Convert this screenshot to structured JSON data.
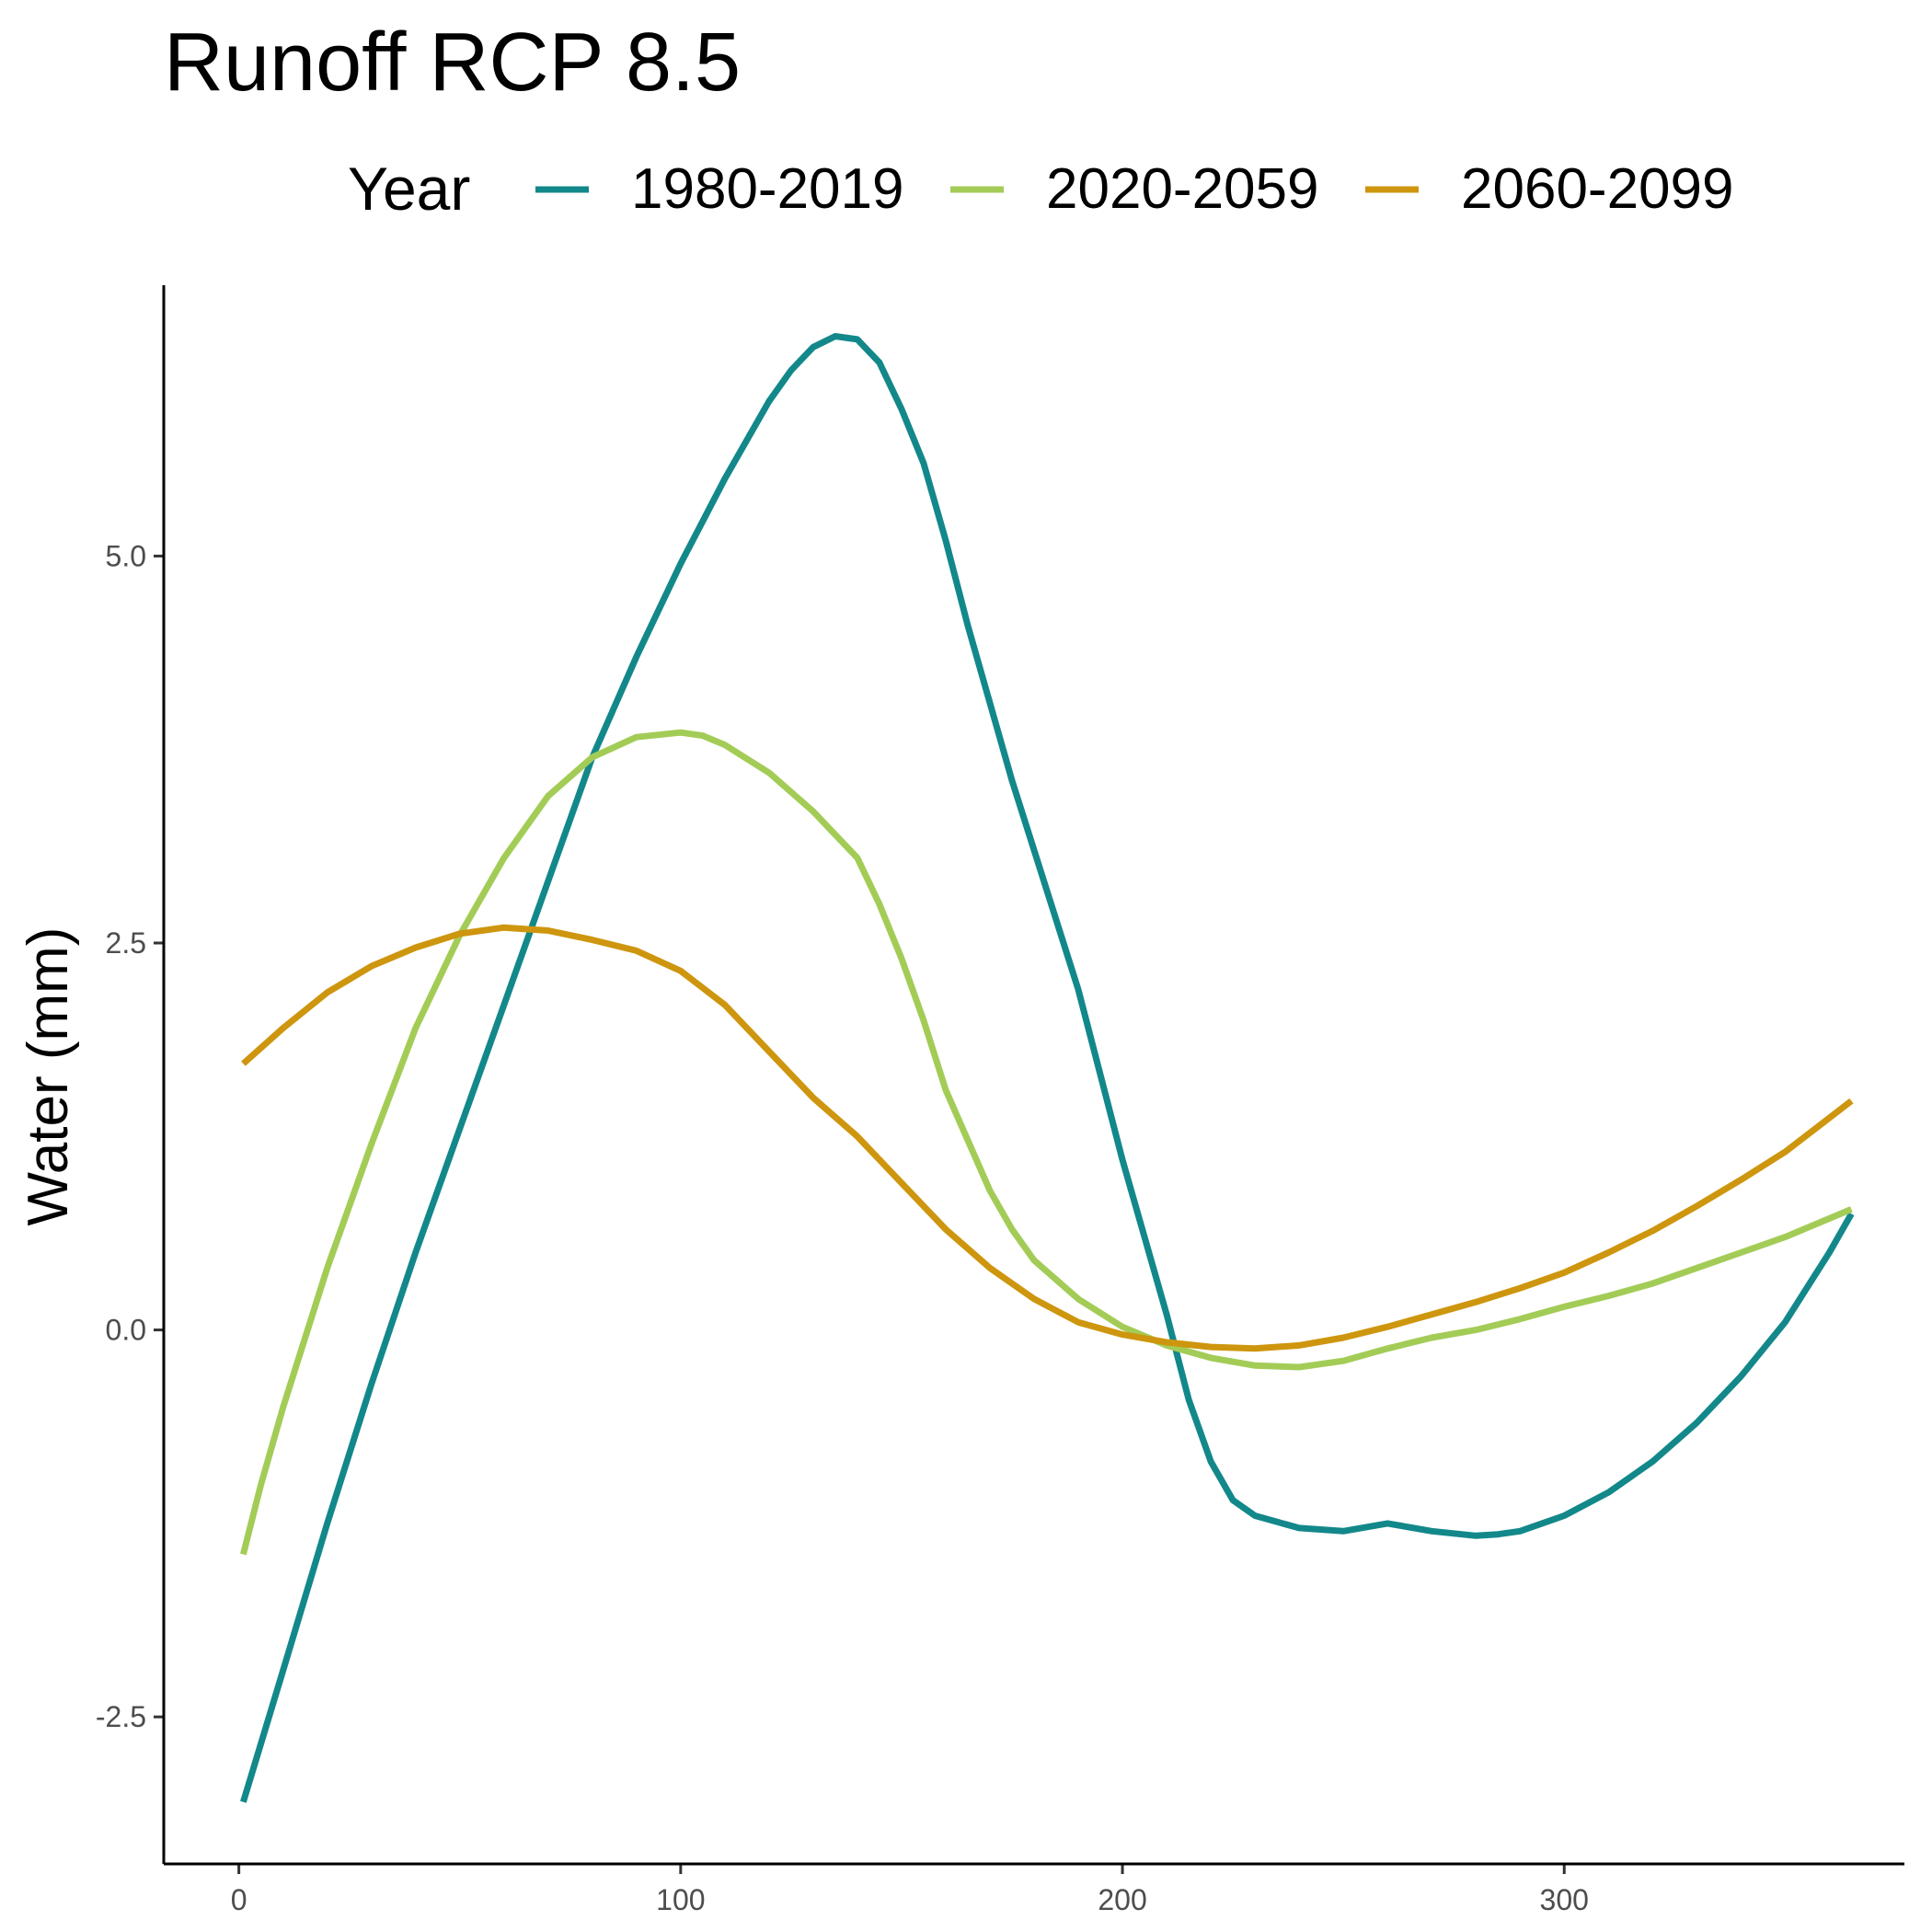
{
  "chart_data": {
    "type": "line",
    "title": "Runoff RCP 8.5",
    "xlabel": "",
    "ylabel": "Water (mm)",
    "xlim": [
      -17,
      377
    ],
    "ylim": [
      -3.45,
      6.75
    ],
    "x_ticks": [
      0,
      100,
      200,
      300
    ],
    "x_tick_labels": [
      "0",
      "100",
      "200",
      "300"
    ],
    "y_ticks": [
      -2.5,
      0.0,
      2.5,
      5.0
    ],
    "y_tick_labels": [
      "-2.5",
      "0.0",
      "2.5",
      "5.0"
    ],
    "grid": false,
    "legend": {
      "title": "Year",
      "position": "top"
    },
    "series": [
      {
        "name": "1980-2019",
        "color": "#13888A",
        "points": [
          [
            1,
            -3.05
          ],
          [
            10,
            -2.2
          ],
          [
            20,
            -1.25
          ],
          [
            30,
            -0.35
          ],
          [
            40,
            0.5
          ],
          [
            50,
            1.3
          ],
          [
            60,
            2.1
          ],
          [
            70,
            2.9
          ],
          [
            75,
            3.3
          ],
          [
            80,
            3.7
          ],
          [
            90,
            4.35
          ],
          [
            100,
            4.95
          ],
          [
            110,
            5.5
          ],
          [
            120,
            6.0
          ],
          [
            125,
            6.2
          ],
          [
            130,
            6.35
          ],
          [
            135,
            6.42
          ],
          [
            140,
            6.4
          ],
          [
            145,
            6.25
          ],
          [
            150,
            5.95
          ],
          [
            155,
            5.6
          ],
          [
            160,
            5.1
          ],
          [
            165,
            4.55
          ],
          [
            170,
            4.05
          ],
          [
            175,
            3.55
          ],
          [
            180,
            3.1
          ],
          [
            190,
            2.2
          ],
          [
            200,
            1.1
          ],
          [
            210,
            0.1
          ],
          [
            215,
            -0.45
          ],
          [
            220,
            -0.85
          ],
          [
            225,
            -1.1
          ],
          [
            230,
            -1.2
          ],
          [
            240,
            -1.28
          ],
          [
            250,
            -1.3
          ],
          [
            260,
            -1.25
          ],
          [
            270,
            -1.3
          ],
          [
            280,
            -1.33
          ],
          [
            285,
            -1.32
          ],
          [
            290,
            -1.3
          ],
          [
            300,
            -1.2
          ],
          [
            310,
            -1.05
          ],
          [
            320,
            -0.85
          ],
          [
            330,
            -0.6
          ],
          [
            340,
            -0.3
          ],
          [
            350,
            0.05
          ],
          [
            360,
            0.5
          ],
          [
            365,
            0.75
          ]
        ]
      },
      {
        "name": "2020-2059",
        "color": "#A3CC57",
        "points": [
          [
            1,
            -1.45
          ],
          [
            5,
            -1.0
          ],
          [
            10,
            -0.5
          ],
          [
            20,
            0.4
          ],
          [
            30,
            1.2
          ],
          [
            40,
            1.95
          ],
          [
            50,
            2.55
          ],
          [
            60,
            3.05
          ],
          [
            70,
            3.45
          ],
          [
            80,
            3.7
          ],
          [
            90,
            3.83
          ],
          [
            100,
            3.86
          ],
          [
            105,
            3.84
          ],
          [
            110,
            3.78
          ],
          [
            120,
            3.6
          ],
          [
            130,
            3.35
          ],
          [
            140,
            3.05
          ],
          [
            145,
            2.75
          ],
          [
            150,
            2.4
          ],
          [
            155,
            2.0
          ],
          [
            160,
            1.55
          ],
          [
            170,
            0.9
          ],
          [
            175,
            0.65
          ],
          [
            180,
            0.45
          ],
          [
            190,
            0.2
          ],
          [
            200,
            0.02
          ],
          [
            210,
            -0.1
          ],
          [
            220,
            -0.18
          ],
          [
            230,
            -0.23
          ],
          [
            240,
            -0.24
          ],
          [
            250,
            -0.2
          ],
          [
            260,
            -0.12
          ],
          [
            270,
            -0.05
          ],
          [
            280,
            0.0
          ],
          [
            290,
            0.07
          ],
          [
            300,
            0.15
          ],
          [
            310,
            0.22
          ],
          [
            320,
            0.3
          ],
          [
            330,
            0.4
          ],
          [
            340,
            0.5
          ],
          [
            350,
            0.6
          ],
          [
            365,
            0.78
          ]
        ]
      },
      {
        "name": "2060-2099",
        "color": "#CE960E",
        "points": [
          [
            1,
            1.72
          ],
          [
            10,
            1.95
          ],
          [
            20,
            2.18
          ],
          [
            30,
            2.35
          ],
          [
            40,
            2.47
          ],
          [
            50,
            2.56
          ],
          [
            60,
            2.6
          ],
          [
            70,
            2.58
          ],
          [
            80,
            2.52
          ],
          [
            90,
            2.45
          ],
          [
            100,
            2.32
          ],
          [
            110,
            2.1
          ],
          [
            120,
            1.8
          ],
          [
            130,
            1.5
          ],
          [
            140,
            1.25
          ],
          [
            150,
            0.95
          ],
          [
            160,
            0.65
          ],
          [
            170,
            0.4
          ],
          [
            180,
            0.2
          ],
          [
            190,
            0.05
          ],
          [
            200,
            -0.03
          ],
          [
            210,
            -0.08
          ],
          [
            220,
            -0.11
          ],
          [
            230,
            -0.12
          ],
          [
            240,
            -0.1
          ],
          [
            250,
            -0.05
          ],
          [
            260,
            0.02
          ],
          [
            270,
            0.1
          ],
          [
            280,
            0.18
          ],
          [
            290,
            0.27
          ],
          [
            300,
            0.37
          ],
          [
            310,
            0.5
          ],
          [
            320,
            0.64
          ],
          [
            330,
            0.8
          ],
          [
            340,
            0.97
          ],
          [
            350,
            1.15
          ],
          [
            360,
            1.37
          ],
          [
            365,
            1.48
          ]
        ]
      }
    ]
  }
}
